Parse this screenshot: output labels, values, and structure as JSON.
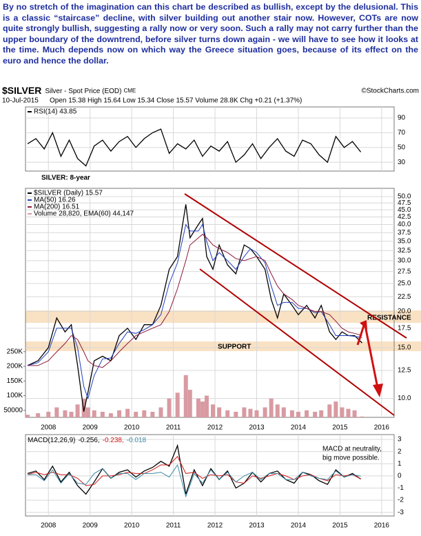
{
  "commentary": "By no stretch of the imagination can this chart be described as bullish, except by the delusional. This is a classic “staircase” decline, with silver building out another stair now. However, COTs are now quite strongly bullish, suggesting a rally now or very soon. Such a rally may not carry further than the upper boundary of the downtrend, before silver turns down again - we will have to see how it looks at the time. Much depends now on which way the Greece situation goes, because of its effect on the euro and hence the dollar.",
  "chart_data": [
    {
      "type": "line",
      "grid": true,
      "x": [
        2007.5,
        2007.7,
        2007.9,
        2008.1,
        2008.3,
        2008.5,
        2008.7,
        2008.9,
        2009.1,
        2009.3,
        2009.5,
        2009.7,
        2009.9,
        2010.1,
        2010.3,
        2010.5,
        2010.7,
        2010.9,
        2011.1,
        2011.3,
        2011.5,
        2011.7,
        2011.9,
        2012.1,
        2012.3,
        2012.5,
        2012.7,
        2012.9,
        2013.1,
        2013.3,
        2013.5,
        2013.7,
        2013.9,
        2014.1,
        2014.3,
        2014.5,
        2014.7,
        2014.9,
        2015.1,
        2015.3,
        2015.5
      ],
      "xlim": [
        2007.45,
        2016.3
      ],
      "xticks": [
        2008,
        2009,
        2010,
        2011,
        2012,
        2013,
        2014,
        2015,
        2016
      ],
      "ylim": [
        18,
        105
      ],
      "yticks": [
        30,
        50,
        70,
        90
      ],
      "series": [
        {
          "name": "RSI(14) 43.85",
          "color": "#000000",
          "values": [
            55,
            62,
            48,
            70,
            38,
            60,
            35,
            25,
            52,
            60,
            45,
            58,
            65,
            50,
            62,
            70,
            75,
            42,
            55,
            48,
            60,
            38,
            52,
            45,
            58,
            30,
            40,
            55,
            35,
            50,
            62,
            45,
            38,
            60,
            55,
            40,
            30,
            65,
            50,
            58,
            43.85
          ]
        }
      ]
    },
    {
      "type": "line",
      "grid": true,
      "log": true,
      "title": "$SILVER",
      "subtitle": "Silver - Spot Price (EOD)",
      "source": "CME",
      "credit": "©StockCharts.com",
      "date": "10-Jul-2015",
      "quote": "Open 15.38 High 15.64 Low 15.34 Close 15.57 Volume 28.8K Chg +0.21 (+1.37%)",
      "annotations": [
        "SILVER: 8-year",
        "RESISTANCE",
        "SUPPORT"
      ],
      "x": [
        2007.5,
        2007.75,
        2008.0,
        2008.2,
        2008.4,
        2008.55,
        2008.7,
        2008.85,
        2008.95,
        2009.1,
        2009.3,
        2009.5,
        2009.7,
        2009.9,
        2010.1,
        2010.3,
        2010.5,
        2010.7,
        2010.9,
        2011.1,
        2011.3,
        2011.4,
        2011.6,
        2011.7,
        2011.8,
        2011.95,
        2012.1,
        2012.3,
        2012.5,
        2012.7,
        2012.85,
        2013.0,
        2013.2,
        2013.35,
        2013.5,
        2013.65,
        2013.85,
        2014.0,
        2014.2,
        2014.4,
        2014.55,
        2014.75,
        2014.9,
        2015.05,
        2015.2,
        2015.35,
        2015.53
      ],
      "xlim": [
        2007.45,
        2016.3
      ],
      "xticks": [
        2008,
        2009,
        2010,
        2011,
        2012,
        2013,
        2014,
        2015,
        2016
      ],
      "ylim": [
        8.6,
        53.4
      ],
      "yticks": [
        {
          "value": 10,
          "label": "10.0"
        },
        12.5,
        {
          "value": 15,
          "label": "15.0"
        },
        17.5,
        {
          "value": 20,
          "label": "20.0"
        },
        22.5,
        {
          "value": 25,
          "label": "25.0"
        },
        27.5,
        {
          "value": 30,
          "label": "30.0"
        },
        32.5,
        {
          "value": 35,
          "label": "35.0"
        },
        37.5,
        {
          "value": 40,
          "label": "40.0"
        },
        42.5,
        {
          "value": 45,
          "label": "45.0"
        },
        47.5,
        {
          "value": 50,
          "label": "50.0"
        }
      ],
      "y2lim": [
        26000,
        807000
      ],
      "y2ticks": [
        50000,
        {
          "value": 100000,
          "label": "100K"
        },
        {
          "value": 150000,
          "label": "150K"
        },
        {
          "value": 200000,
          "label": "200K"
        },
        {
          "value": 250000,
          "label": "250K"
        }
      ],
      "series": [
        {
          "name": "$SILVER (Daily) 15.57",
          "color": "#000000",
          "values": [
            13,
            13.5,
            15,
            19,
            17,
            18,
            13,
            9,
            10.5,
            13.5,
            14,
            13.5,
            16.5,
            17.5,
            16,
            18,
            18,
            21,
            28,
            31,
            47,
            36,
            40,
            42,
            31,
            28,
            34,
            29,
            27,
            34,
            33,
            31,
            28,
            22,
            19,
            23,
            21,
            19.5,
            21,
            19,
            21,
            17,
            16,
            17,
            16.5,
            16.5,
            15.57
          ]
        },
        {
          "name": "MA(50) 16.26",
          "color": "#1f3fbf",
          "values": [
            13,
            13.3,
            14.5,
            17.5,
            17.5,
            17.5,
            15,
            11,
            10,
            12,
            13.7,
            13.8,
            15.5,
            17,
            16.8,
            17.3,
            18,
            19.5,
            25,
            29.5,
            40,
            38,
            38,
            40,
            35,
            30,
            32,
            30,
            28,
            31,
            33,
            32,
            29.5,
            24.5,
            21,
            21.5,
            21.5,
            20.5,
            20.5,
            19.8,
            20,
            18,
            16.5,
            16.5,
            16.5,
            16.4,
            16.26
          ]
        },
        {
          "name": "MA(200) 16.51",
          "color": "#8b1a3a",
          "values": [
            13,
            13,
            13.5,
            14.5,
            15.5,
            16.5,
            16,
            14.5,
            13.5,
            13,
            12.8,
            13.5,
            14.5,
            15.5,
            16.5,
            17,
            17.5,
            18,
            20,
            24,
            30,
            34,
            36,
            37,
            36,
            34,
            33,
            32,
            30.5,
            30,
            30.5,
            31,
            30,
            27,
            24.5,
            23,
            22,
            21,
            20.5,
            20,
            20,
            19.5,
            18.5,
            17.5,
            17,
            16.8,
            16.51
          ]
        },
        {
          "name": "Volume 28,820, EMA(60) 44,147",
          "color": "#d99aa2",
          "type": "bar",
          "axis": "y2",
          "values": [
            35000,
            40000,
            45000,
            60000,
            50000,
            45000,
            70000,
            90000,
            60000,
            50000,
            45000,
            40000,
            50000,
            55000,
            45000,
            50000,
            45000,
            60000,
            90000,
            110000,
            170000,
            120000,
            90000,
            80000,
            100000,
            70000,
            60000,
            50000,
            45000,
            60000,
            55000,
            50000,
            60000,
            90000,
            70000,
            60000,
            50000,
            45000,
            50000,
            45000,
            50000,
            70000,
            80000,
            60000,
            55000,
            50000,
            28820
          ]
        }
      ]
    },
    {
      "type": "line",
      "grid": true,
      "title": "MACD(12,26,9)",
      "annotations": [
        "MACD at neutrality,",
        "big move possible."
      ],
      "x": [
        2007.5,
        2007.7,
        2007.9,
        2008.1,
        2008.3,
        2008.5,
        2008.7,
        2008.9,
        2009.1,
        2009.3,
        2009.5,
        2009.7,
        2009.9,
        2010.1,
        2010.3,
        2010.5,
        2010.7,
        2010.9,
        2011.1,
        2011.3,
        2011.5,
        2011.7,
        2011.9,
        2012.1,
        2012.3,
        2012.5,
        2012.7,
        2012.9,
        2013.1,
        2013.3,
        2013.5,
        2013.7,
        2013.9,
        2014.1,
        2014.3,
        2014.5,
        2014.7,
        2014.9,
        2015.1,
        2015.3,
        2015.5
      ],
      "xlim": [
        2007.45,
        2016.3
      ],
      "xticks": [
        2008,
        2009,
        2010,
        2011,
        2012,
        2013,
        2014,
        2015,
        2016
      ],
      "ylim": [
        -3.3,
        3.4
      ],
      "yticks": [
        -3,
        -2,
        -1,
        0,
        1,
        2,
        3
      ],
      "series": [
        {
          "name": "-0.256,",
          "color": "#000000",
          "values": [
            0.2,
            0.4,
            -0.3,
            0.8,
            -0.5,
            0.3,
            -0.8,
            -1.5,
            -0.5,
            0.6,
            -0.2,
            0.3,
            0.5,
            -0.1,
            0.4,
            0.7,
            1.2,
            0.8,
            2.5,
            -1.5,
            0.5,
            -0.8,
            0.6,
            -0.3,
            0.4,
            -1.0,
            -0.6,
            0.3,
            -0.5,
            0.2,
            0.4,
            -0.3,
            -0.6,
            0.3,
            0.1,
            -0.4,
            -0.7,
            0.5,
            -0.1,
            0.2,
            -0.256
          ]
        },
        {
          "name": "-0.238,",
          "color": "#d01818",
          "values": [
            0.1,
            0.3,
            0.1,
            0.3,
            0.1,
            0.1,
            -0.2,
            -0.8,
            -0.7,
            0,
            0,
            0.1,
            0.3,
            0.2,
            0.2,
            0.5,
            0.9,
            0.9,
            1.6,
            0.2,
            0.3,
            -0.2,
            0.1,
            0,
            0.1,
            -0.5,
            -0.6,
            0,
            -0.2,
            0,
            0.2,
            0,
            -0.3,
            0,
            0.1,
            -0.2,
            -0.4,
            0.1,
            0,
            0.1,
            -0.238
          ]
        },
        {
          "name": "-0.018",
          "color": "#3a8aa8",
          "values": [
            0.1,
            0.1,
            -0.4,
            0.5,
            -0.6,
            0.2,
            -0.6,
            -0.7,
            0.2,
            0.6,
            -0.2,
            0.2,
            0.2,
            -0.3,
            0.2,
            0.2,
            0.3,
            -0.1,
            0.9,
            -1.7,
            0.2,
            -0.6,
            0.5,
            -0.3,
            0.3,
            -0.5,
            0,
            0.3,
            -0.3,
            0.2,
            0.2,
            -0.3,
            -0.3,
            0.3,
            0,
            -0.2,
            -0.3,
            0.4,
            -0.1,
            0.1,
            -0.018
          ]
        }
      ]
    }
  ]
}
